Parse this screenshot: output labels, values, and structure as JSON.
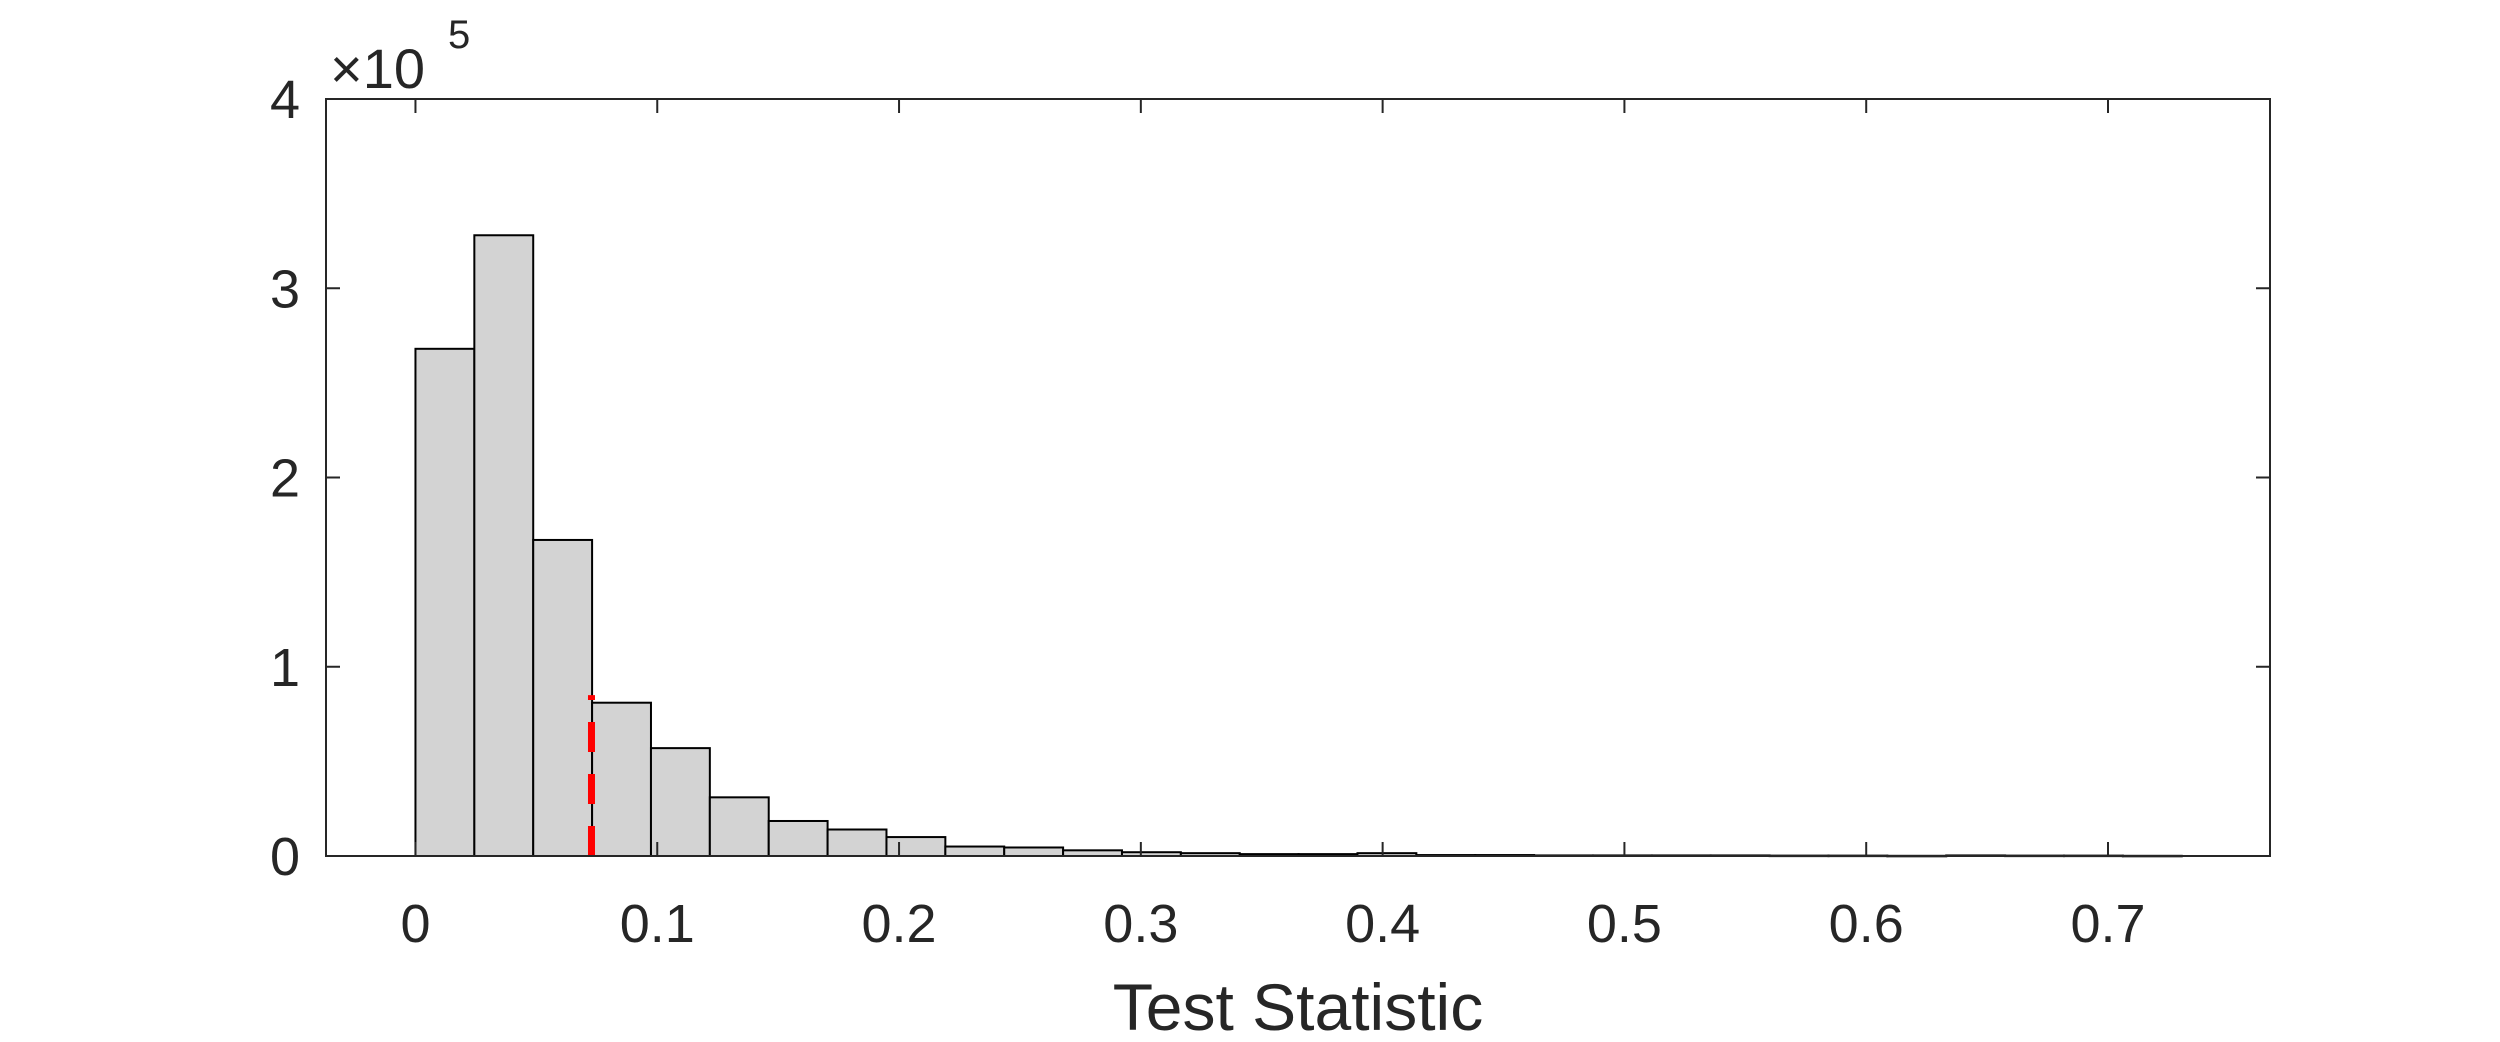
{
  "chart_data": {
    "type": "bar",
    "title": "",
    "xlabel": "Test Statistic",
    "ylabel": "",
    "y_exponent_label": {
      "prefix": "×10",
      "power": "5"
    },
    "xlim": [
      -0.037,
      0.767
    ],
    "ylim": [
      0,
      400000
    ],
    "x_ticks": [
      0,
      0.1,
      0.2,
      0.3,
      0.4,
      0.5,
      0.6,
      0.7
    ],
    "x_tick_labels": [
      "0",
      "0.1",
      "0.2",
      "0.3",
      "0.4",
      "0.5",
      "0.6",
      "0.7"
    ],
    "y_ticks": [
      0,
      100000,
      200000,
      300000,
      400000
    ],
    "y_tick_labels": [
      "0",
      "1",
      "2",
      "3",
      "4"
    ],
    "grid": false,
    "bin_width": 0.02435,
    "bin_start": 0,
    "values": [
      268000,
      328000,
      167000,
      81000,
      57000,
      31000,
      18500,
      14000,
      10000,
      5000,
      4500,
      3000,
      2000,
      1500,
      1000,
      1000,
      1500,
      500,
      500,
      300,
      300,
      300,
      300,
      200,
      200,
      100,
      300,
      200,
      200,
      100
    ],
    "bar_color": "#d3d3d3",
    "edge_color": "#000000",
    "threshold": {
      "x": 0.0728,
      "color": "#ff0000",
      "style": "dashed"
    }
  }
}
